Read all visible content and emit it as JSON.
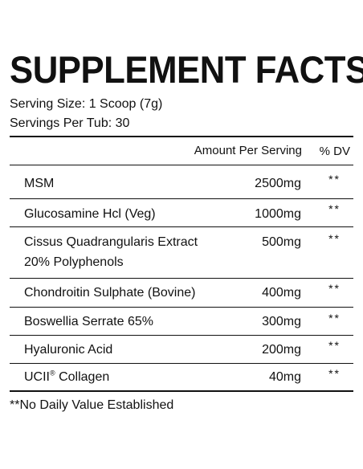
{
  "title": "SUPPLEMENT FACTS",
  "serving_size": "Serving Size: 1 Scoop (7g)",
  "servings_per": "Servings Per Tub: 30",
  "header": {
    "amount": "Amount Per Serving",
    "dv": "% DV"
  },
  "ingredients": [
    {
      "name": "MSM",
      "amount": "2500mg",
      "dv": "**"
    },
    {
      "name": "Glucosamine Hcl (Veg)",
      "amount": "1000mg",
      "dv": "**"
    },
    {
      "name_line1": "Cissus Quadrangularis Extract",
      "name_line2": "20% Polyphenols",
      "amount": "500mg",
      "dv": "**"
    },
    {
      "name": "Chondroitin Sulphate (Bovine)",
      "amount": "400mg",
      "dv": "**"
    },
    {
      "name": "Boswellia Serrate 65%",
      "amount": "300mg",
      "dv": "**"
    },
    {
      "name": "Hyaluronic Acid",
      "amount": "200mg",
      "dv": "**"
    },
    {
      "name_main": "UCII",
      "name_reg": "®",
      "name_rest": " Collagen",
      "amount": "40mg",
      "dv": "**"
    }
  ],
  "footnote": "**No Daily Value Established"
}
